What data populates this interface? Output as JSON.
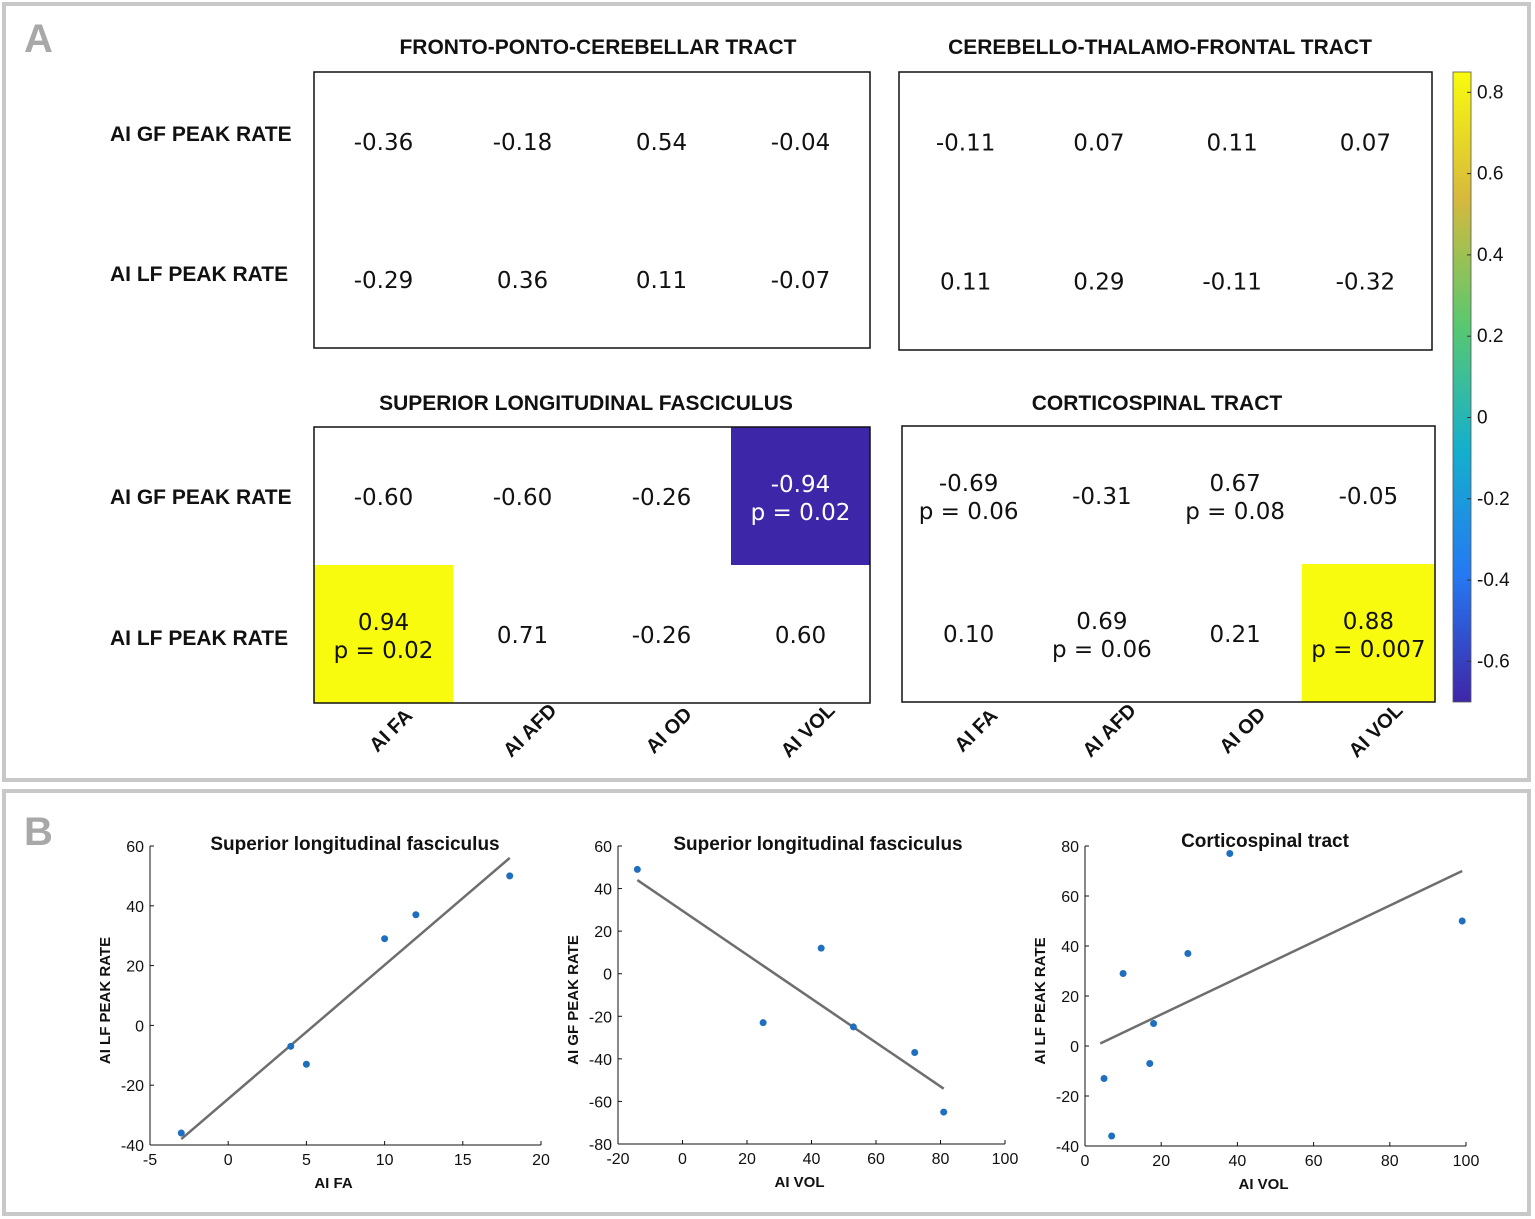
{
  "panels": {
    "a_label": "A",
    "b_label": "B"
  },
  "chart_data": [
    {
      "type": "heatmap",
      "title": "FRONTO-PONTO-CEREBELLAR TRACT",
      "rows": [
        "AI GF PEAK RATE",
        "AI LF PEAK RATE"
      ],
      "columns": [
        "AI FA",
        "AI AFD",
        "AI OD",
        "AI VOL"
      ],
      "values": [
        [
          -0.36,
          -0.18,
          0.54,
          -0.04
        ],
        [
          -0.29,
          0.36,
          0.11,
          -0.07
        ]
      ],
      "cell_text": [
        [
          [
            "-0.36"
          ],
          [
            "-0.18"
          ],
          [
            "0.54"
          ],
          [
            "-0.04"
          ]
        ],
        [
          [
            "-0.29"
          ],
          [
            "0.36"
          ],
          [
            "0.11"
          ],
          [
            "-0.07"
          ]
        ]
      ],
      "highlight": [
        [
          false,
          false,
          false,
          false
        ],
        [
          false,
          false,
          false,
          false
        ]
      ]
    },
    {
      "type": "heatmap",
      "title": "CEREBELLO-THALAMO-FRONTAL TRACT",
      "rows": [
        "AI GF PEAK RATE",
        "AI LF PEAK RATE"
      ],
      "columns": [
        "AI FA",
        "AI AFD",
        "AI OD",
        "AI VOL"
      ],
      "values": [
        [
          -0.11,
          0.07,
          0.11,
          0.07
        ],
        [
          0.11,
          0.29,
          -0.11,
          -0.32
        ]
      ],
      "cell_text": [
        [
          [
            "-0.11"
          ],
          [
            "0.07"
          ],
          [
            "0.11"
          ],
          [
            "0.07"
          ]
        ],
        [
          [
            "0.11"
          ],
          [
            "0.29"
          ],
          [
            "-0.11"
          ],
          [
            "-0.32"
          ]
        ]
      ],
      "highlight": [
        [
          false,
          false,
          false,
          false
        ],
        [
          false,
          false,
          false,
          false
        ]
      ]
    },
    {
      "type": "heatmap",
      "title": "SUPERIOR LONGITUDINAL FASCICULUS",
      "rows": [
        "AI GF PEAK RATE",
        "AI LF PEAK RATE"
      ],
      "columns": [
        "AI FA",
        "AI AFD",
        "AI OD",
        "AI VOL"
      ],
      "values": [
        [
          -0.6,
          -0.6,
          -0.26,
          -0.94
        ],
        [
          0.94,
          0.71,
          -0.26,
          0.6
        ]
      ],
      "cell_text": [
        [
          [
            "-0.60"
          ],
          [
            "-0.60"
          ],
          [
            "-0.26"
          ],
          [
            "-0.94",
            "p = 0.02"
          ]
        ],
        [
          [
            "0.94",
            "p = 0.02"
          ],
          [
            "0.71"
          ],
          [
            "-0.26"
          ],
          [
            "0.60"
          ]
        ]
      ],
      "highlight": [
        [
          false,
          false,
          false,
          true
        ],
        [
          true,
          false,
          false,
          false
        ]
      ]
    },
    {
      "type": "heatmap",
      "title": "CORTICOSPINAL TRACT",
      "rows": [
        "AI GF PEAK RATE",
        "AI LF PEAK RATE"
      ],
      "columns": [
        "AI FA",
        "AI AFD",
        "AI OD",
        "AI VOL"
      ],
      "values": [
        [
          -0.69,
          -0.31,
          0.67,
          -0.05
        ],
        [
          0.1,
          0.69,
          0.21,
          0.88
        ]
      ],
      "cell_text": [
        [
          [
            "-0.69",
            "p = 0.06"
          ],
          [
            "-0.31"
          ],
          [
            "0.67",
            "p = 0.08"
          ],
          [
            "-0.05"
          ]
        ],
        [
          [
            "0.10"
          ],
          [
            "0.69",
            "p = 0.06"
          ],
          [
            "0.21"
          ],
          [
            "0.88",
            "p = 0.007"
          ]
        ]
      ],
      "highlight": [
        [
          false,
          false,
          false,
          false
        ],
        [
          false,
          false,
          false,
          true
        ]
      ]
    },
    {
      "type": "colorbar",
      "range": [
        -0.7,
        0.85
      ],
      "ticks": [
        0.8,
        0.6,
        0.4,
        0.2,
        0,
        -0.2,
        -0.4,
        -0.6
      ],
      "tick_labels": [
        "0.8",
        "0.6",
        "0.4",
        "0.2",
        "0",
        "-0.2",
        "-0.4",
        "-0.6"
      ],
      "colormap": "parula"
    },
    {
      "type": "scatter",
      "title": "Superior longitudinal fasciculus",
      "xlabel": "AI FA",
      "ylabel": "AI LF PEAK RATE",
      "xlim": [
        -5,
        20
      ],
      "ylim": [
        -40,
        60
      ],
      "xticks": [
        -5,
        0,
        5,
        10,
        15,
        20
      ],
      "yticks": [
        60,
        40,
        20,
        0,
        -20,
        -40
      ],
      "points": [
        [
          -3,
          -36
        ],
        [
          4,
          -7
        ],
        [
          5,
          -13
        ],
        [
          10,
          29
        ],
        [
          12,
          37
        ],
        [
          18,
          50
        ]
      ],
      "fit_line": [
        [
          -3,
          -38
        ],
        [
          18,
          56
        ]
      ]
    },
    {
      "type": "scatter",
      "title": "Superior longitudinal fasciculus",
      "xlabel": "AI VOL",
      "ylabel": "AI GF PEAK RATE",
      "xlim": [
        -20,
        100
      ],
      "ylim": [
        -80,
        60
      ],
      "xticks": [
        -20,
        0,
        20,
        40,
        60,
        80,
        100
      ],
      "yticks": [
        60,
        40,
        20,
        0,
        -20,
        -40,
        -60,
        -80
      ],
      "points": [
        [
          -14,
          49
        ],
        [
          25,
          -23
        ],
        [
          43,
          12
        ],
        [
          53,
          -25
        ],
        [
          72,
          -37
        ],
        [
          81,
          -65
        ]
      ],
      "fit_line": [
        [
          -14,
          44
        ],
        [
          81,
          -54
        ]
      ]
    },
    {
      "type": "scatter",
      "title": "Corticospinal tract",
      "xlabel": "AI VOL",
      "ylabel": "AI LF PEAK RATE",
      "xlim": [
        0,
        100
      ],
      "ylim": [
        -40,
        80
      ],
      "xticks": [
        0,
        20,
        40,
        60,
        80,
        100
      ],
      "yticks": [
        80,
        60,
        40,
        20,
        0,
        -20,
        -40
      ],
      "points": [
        [
          5,
          -13
        ],
        [
          7,
          -36
        ],
        [
          10,
          29
        ],
        [
          17,
          -7
        ],
        [
          18,
          9
        ],
        [
          27,
          37
        ],
        [
          38,
          77
        ],
        [
          99,
          50
        ]
      ],
      "fit_line": [
        [
          4,
          1
        ],
        [
          99,
          70
        ]
      ]
    }
  ]
}
